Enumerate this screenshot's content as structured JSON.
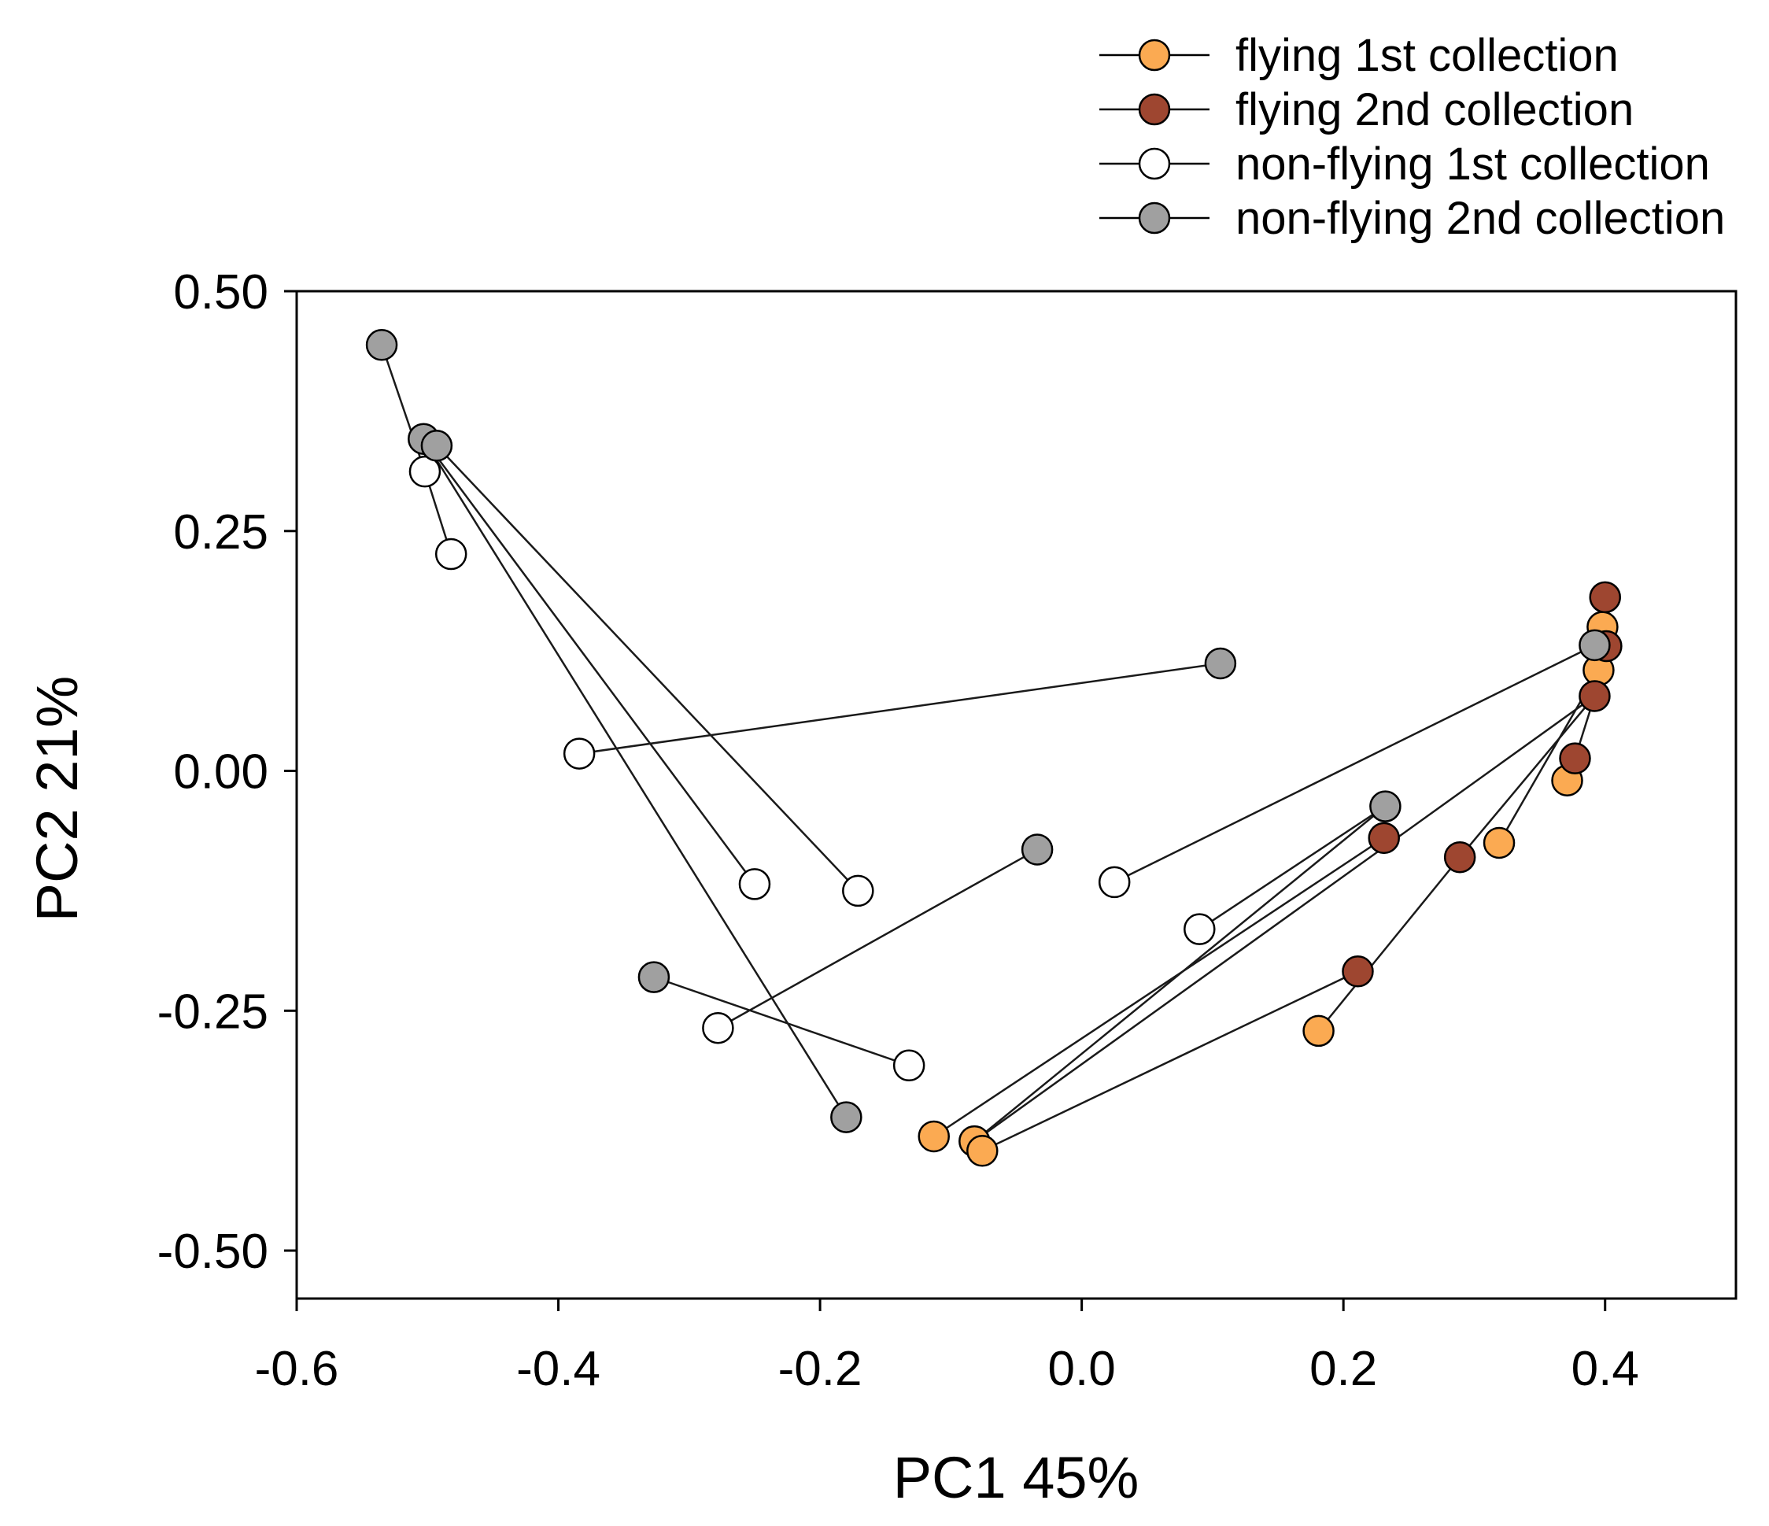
{
  "chart_data": {
    "type": "scatter",
    "title": "",
    "xlabel": "PC1  45%",
    "ylabel": "PC2  21%",
    "xlim": [
      -0.6,
      0.5
    ],
    "ylim": [
      -0.55,
      0.5
    ],
    "xticks": [
      -0.6,
      -0.4,
      -0.2,
      0.0,
      0.2,
      0.4
    ],
    "xtick_labels": [
      "-0.6",
      "-0.4",
      "-0.2",
      "0.0",
      "0.2",
      "0.4"
    ],
    "yticks": [
      0.5,
      0.25,
      0.0,
      -0.25,
      -0.5
    ],
    "ytick_labels": [
      "0.50",
      "0.25",
      "0.00",
      "-0.25",
      "-0.50"
    ],
    "grid": false,
    "legend_position": "top-right",
    "series": [
      {
        "name": "flying 1st collection",
        "color": "#FBAA52",
        "points": [
          [
            -0.113,
            -0.381
          ],
          [
            -0.082,
            -0.386
          ],
          [
            -0.076,
            -0.396
          ],
          [
            0.181,
            -0.271
          ],
          [
            0.319,
            -0.075
          ],
          [
            0.371,
            -0.01
          ],
          [
            0.395,
            0.105
          ],
          [
            0.398,
            0.15
          ]
        ]
      },
      {
        "name": "flying 2nd collection",
        "color": "#9E4630",
        "points": [
          [
            0.211,
            -0.209
          ],
          [
            0.231,
            -0.07
          ],
          [
            0.289,
            -0.09
          ],
          [
            0.377,
            0.013
          ],
          [
            0.392,
            0.078
          ],
          [
            0.401,
            0.13
          ],
          [
            0.4,
            0.181
          ]
        ]
      },
      {
        "name": "non-flying 1st collection",
        "color": "#FFFFFF",
        "points": [
          [
            -0.502,
            0.312
          ],
          [
            -0.482,
            0.226
          ],
          [
            -0.384,
            0.018
          ],
          [
            -0.25,
            -0.118
          ],
          [
            -0.171,
            -0.125
          ],
          [
            -0.278,
            -0.268
          ],
          [
            -0.132,
            -0.307
          ],
          [
            0.025,
            -0.116
          ],
          [
            0.09,
            -0.165
          ]
        ]
      },
      {
        "name": "non-flying 2nd collection",
        "color": "#A0A0A0",
        "points": [
          [
            -0.535,
            0.444
          ],
          [
            -0.503,
            0.346
          ],
          [
            -0.493,
            0.339
          ],
          [
            0.106,
            0.112
          ],
          [
            -0.034,
            -0.082
          ],
          [
            -0.327,
            -0.215
          ],
          [
            -0.18,
            -0.361
          ],
          [
            0.232,
            -0.037
          ],
          [
            0.392,
            0.131
          ]
        ]
      }
    ],
    "connections": [
      [
        [
          -0.535,
          0.444
        ],
        [
          -0.502,
          0.312
        ]
      ],
      [
        [
          -0.502,
          0.312
        ],
        [
          -0.482,
          0.226
        ]
      ],
      [
        [
          -0.493,
          0.339
        ],
        [
          -0.171,
          -0.125
        ]
      ],
      [
        [
          -0.503,
          0.346
        ],
        [
          -0.25,
          -0.118
        ]
      ],
      [
        [
          -0.503,
          0.346
        ],
        [
          -0.18,
          -0.361
        ]
      ],
      [
        [
          -0.384,
          0.018
        ],
        [
          0.106,
          0.112
        ]
      ],
      [
        [
          -0.278,
          -0.268
        ],
        [
          -0.034,
          -0.082
        ]
      ],
      [
        [
          -0.327,
          -0.215
        ],
        [
          -0.132,
          -0.307
        ]
      ],
      [
        [
          0.025,
          -0.116
        ],
        [
          0.392,
          0.131
        ]
      ],
      [
        [
          0.09,
          -0.165
        ],
        [
          0.232,
          -0.037
        ]
      ],
      [
        [
          -0.113,
          -0.381
        ],
        [
          0.231,
          -0.07
        ]
      ],
      [
        [
          -0.082,
          -0.386
        ],
        [
          0.232,
          -0.037
        ]
      ],
      [
        [
          -0.076,
          -0.396
        ],
        [
          0.211,
          -0.209
        ]
      ],
      [
        [
          -0.082,
          -0.386
        ],
        [
          0.392,
          0.078
        ]
      ],
      [
        [
          0.181,
          -0.271
        ],
        [
          0.289,
          -0.09
        ]
      ],
      [
        [
          0.289,
          -0.09
        ],
        [
          0.392,
          0.078
        ]
      ],
      [
        [
          0.319,
          -0.075
        ],
        [
          0.395,
          0.105
        ]
      ],
      [
        [
          0.371,
          -0.01
        ],
        [
          0.377,
          0.013
        ]
      ],
      [
        [
          0.377,
          0.013
        ],
        [
          0.392,
          0.078
        ]
      ],
      [
        [
          0.395,
          0.105
        ],
        [
          0.401,
          0.13
        ]
      ],
      [
        [
          0.398,
          0.15
        ],
        [
          0.4,
          0.181
        ]
      ]
    ]
  }
}
